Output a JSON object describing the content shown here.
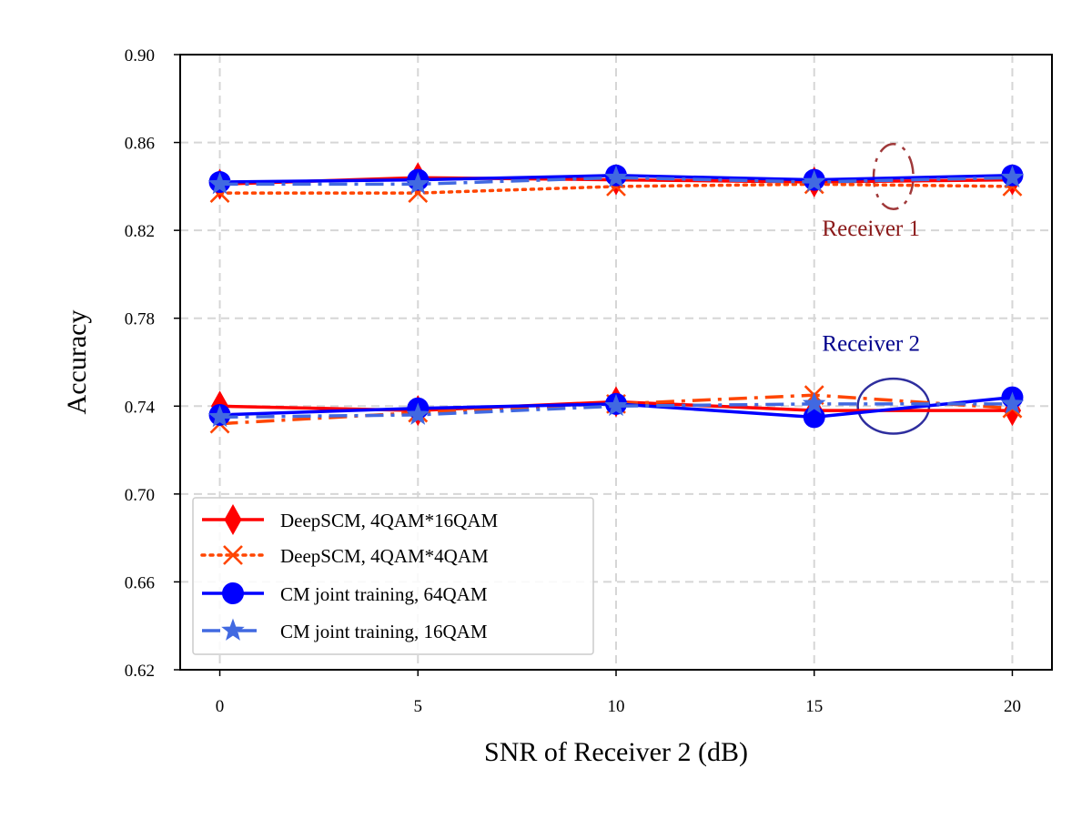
{
  "chart_data": {
    "type": "line",
    "title": "",
    "xlabel": "SNR of Receiver 2 (dB)",
    "ylabel": "Accuracy",
    "x": [
      0,
      5,
      10,
      15,
      20
    ],
    "xlim": [
      -1,
      21
    ],
    "ylim": [
      0.62,
      0.9
    ],
    "xticks": [
      0,
      5,
      10,
      15,
      20
    ],
    "xtick_labels": [
      "0",
      "5",
      "10",
      "15",
      "20"
    ],
    "yticks": [
      0.62,
      0.66,
      0.7,
      0.74,
      0.78,
      0.82,
      0.86,
      0.9
    ],
    "ytick_labels": [
      "0.62",
      "0.66",
      "0.70",
      "0.74",
      "0.78",
      "0.82",
      "0.86",
      "0.90"
    ],
    "grid": true,
    "legend_position": "bottom-left",
    "series": [
      {
        "name": "DeepSCM, 4QAM*16QAM",
        "color": "#ff0000",
        "line_style": "solid",
        "marker": "thin-diamond",
        "receiver1": [
          0.841,
          0.844,
          0.843,
          0.842,
          0.843
        ],
        "receiver2": [
          0.74,
          0.738,
          0.742,
          0.738,
          0.738
        ]
      },
      {
        "name": "DeepSCM, 4QAM*4QAM",
        "color": "#ff4500",
        "line_style_receiver1": "dotted",
        "line_style_receiver2": "dashdot",
        "marker": "x",
        "receiver1": [
          0.837,
          0.837,
          0.84,
          0.841,
          0.84
        ],
        "receiver2": [
          0.732,
          0.737,
          0.741,
          0.745,
          0.739
        ]
      },
      {
        "name": "CM joint training, 64QAM",
        "color": "#0000ff",
        "line_style": "solid",
        "marker": "circle",
        "receiver1": [
          0.842,
          0.843,
          0.845,
          0.843,
          0.845
        ],
        "receiver2": [
          0.736,
          0.739,
          0.741,
          0.735,
          0.744
        ]
      },
      {
        "name": "CM joint training, 16QAM",
        "color": "#4169e1",
        "line_style": "dashdot",
        "marker": "star",
        "receiver1": [
          0.841,
          0.841,
          0.844,
          0.842,
          0.844
        ],
        "receiver2": [
          0.735,
          0.736,
          0.74,
          0.741,
          0.741
        ]
      }
    ],
    "annotations": [
      {
        "text": "Receiver 1",
        "color": "#8b1a1a",
        "ellipse_color": "#a0393a",
        "ellipse_style": "dashdot",
        "ellipse_center": [
          17,
          0.8445
        ],
        "ellipse_radius": [
          0.5,
          0.0148
        ],
        "text_at": [
          15.2,
          0.8175
        ]
      },
      {
        "text": "Receiver 2",
        "color": "#00008b",
        "ellipse_color": "#2e2e9e",
        "ellipse_style": "solid",
        "ellipse_center": [
          17,
          0.74
        ],
        "ellipse_radius": [
          0.9,
          0.0125
        ],
        "text_at": [
          15.2,
          0.7652
        ]
      }
    ]
  }
}
